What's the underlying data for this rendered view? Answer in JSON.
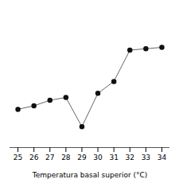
{
  "chart_data": {
    "type": "line",
    "x": [
      25,
      26,
      27,
      28,
      29,
      30,
      31,
      32,
      33,
      34
    ],
    "values": [
      5.5,
      6.0,
      6.8,
      7.2,
      3.0,
      7.8,
      9.5,
      14.0,
      14.2,
      14.4
    ],
    "xlabel": "Temperatura basal superior (°C)",
    "color": "#666666",
    "marker": "circle",
    "xlim": [
      24.5,
      34.5
    ],
    "xticks": [
      25,
      26,
      27,
      28,
      29,
      30,
      31,
      32,
      33,
      34
    ],
    "ylim": [
      0,
      20
    ],
    "tick_labels": "x"
  }
}
